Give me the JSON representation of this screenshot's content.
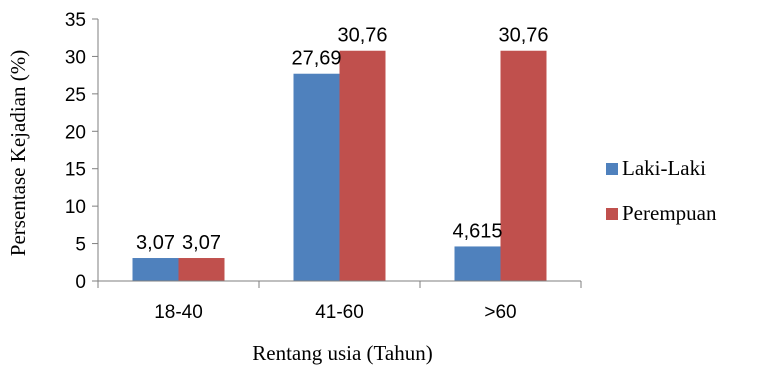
{
  "chart_data": {
    "type": "bar",
    "title": "",
    "xlabel": "Rentang usia (Tahun)",
    "ylabel": "Persentase Kejadian (%)",
    "categories": [
      "18-40",
      "41-60",
      ">60"
    ],
    "series": [
      {
        "name": "Laki-Laki",
        "values": [
          3.07,
          27.69,
          4.615
        ],
        "labels": [
          "3,07",
          "27,69",
          "4,615"
        ],
        "color": "#4f81bd"
      },
      {
        "name": "Perempuan",
        "values": [
          3.07,
          30.76,
          30.76
        ],
        "labels": [
          "3,07",
          "30,76",
          "30,76"
        ],
        "color": "#c0504d"
      }
    ],
    "ylim": [
      0,
      35
    ],
    "yticks": [
      "0",
      "5",
      "10",
      "15",
      "20",
      "25",
      "30",
      "35"
    ],
    "grid": false,
    "legend_position": "right"
  }
}
